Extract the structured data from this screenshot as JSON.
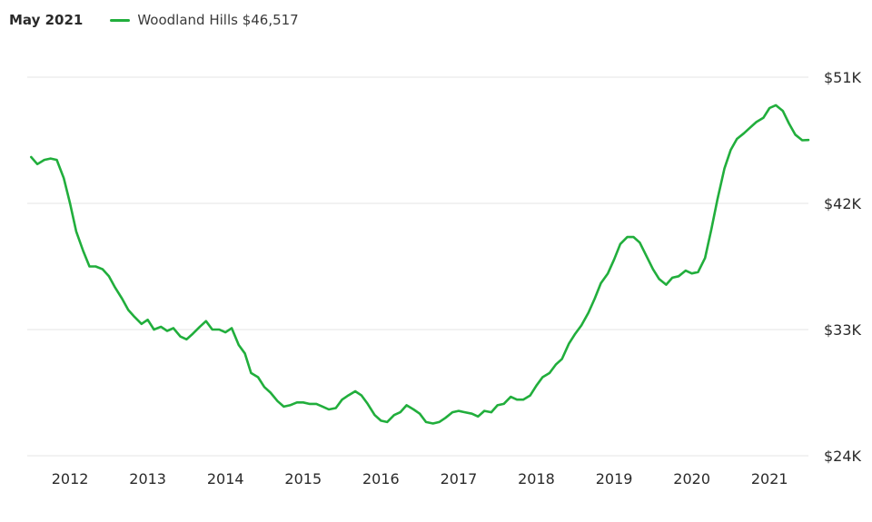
{
  "header": {
    "date_label": "May 2021",
    "series_label": "Woodland Hills $46,517"
  },
  "colors": {
    "line": "#21ae3c",
    "grid": "#e6e6e6",
    "text": "#2a2a2a"
  },
  "chart_data": {
    "type": "line",
    "title": "",
    "xlabel": "",
    "ylabel": "",
    "ylim": [
      24000,
      51000
    ],
    "y_ticks": [
      {
        "value": 24000,
        "label": "$24K"
      },
      {
        "value": 33000,
        "label": "$33K"
      },
      {
        "value": 42000,
        "label": "$42K"
      },
      {
        "value": 51000,
        "label": "$51K"
      }
    ],
    "x_ticks": [
      {
        "value": 2012,
        "label": "2012"
      },
      {
        "value": 2013,
        "label": "2013"
      },
      {
        "value": 2014,
        "label": "2014"
      },
      {
        "value": 2015,
        "label": "2015"
      },
      {
        "value": 2016,
        "label": "2016"
      },
      {
        "value": 2017,
        "label": "2017"
      },
      {
        "value": 2018,
        "label": "2018"
      },
      {
        "value": 2019,
        "label": "2019"
      },
      {
        "value": 2020,
        "label": "2020"
      },
      {
        "value": 2021,
        "label": "2021"
      }
    ],
    "xlim": [
      2011.45,
      2021.5
    ],
    "grid": true,
    "legend_position": "top-left",
    "series": [
      {
        "name": "Woodland Hills",
        "points": [
          [
            2011.5,
            45300
          ],
          [
            2011.58,
            44800
          ],
          [
            2011.67,
            45100
          ],
          [
            2011.75,
            45200
          ],
          [
            2011.83,
            45100
          ],
          [
            2011.92,
            43800
          ],
          [
            2012.0,
            42000
          ],
          [
            2012.08,
            40000
          ],
          [
            2012.17,
            38600
          ],
          [
            2012.25,
            37500
          ],
          [
            2012.33,
            37500
          ],
          [
            2012.42,
            37300
          ],
          [
            2012.5,
            36800
          ],
          [
            2012.58,
            36000
          ],
          [
            2012.67,
            35200
          ],
          [
            2012.75,
            34400
          ],
          [
            2012.83,
            33900
          ],
          [
            2012.92,
            33400
          ],
          [
            2013.0,
            33700
          ],
          [
            2013.08,
            33000
          ],
          [
            2013.17,
            33200
          ],
          [
            2013.25,
            32900
          ],
          [
            2013.33,
            33100
          ],
          [
            2013.42,
            32500
          ],
          [
            2013.5,
            32300
          ],
          [
            2013.58,
            32700
          ],
          [
            2013.67,
            33200
          ],
          [
            2013.75,
            33600
          ],
          [
            2013.83,
            33000
          ],
          [
            2013.92,
            33000
          ],
          [
            2014.0,
            32800
          ],
          [
            2014.08,
            33100
          ],
          [
            2014.17,
            31900
          ],
          [
            2014.25,
            31300
          ],
          [
            2014.33,
            29900
          ],
          [
            2014.42,
            29600
          ],
          [
            2014.5,
            28900
          ],
          [
            2014.58,
            28500
          ],
          [
            2014.67,
            27900
          ],
          [
            2014.75,
            27500
          ],
          [
            2014.83,
            27600
          ],
          [
            2014.92,
            27800
          ],
          [
            2015.0,
            27800
          ],
          [
            2015.08,
            27700
          ],
          [
            2015.17,
            27700
          ],
          [
            2015.25,
            27500
          ],
          [
            2015.33,
            27300
          ],
          [
            2015.42,
            27400
          ],
          [
            2015.5,
            28000
          ],
          [
            2015.58,
            28300
          ],
          [
            2015.67,
            28600
          ],
          [
            2015.75,
            28300
          ],
          [
            2015.83,
            27700
          ],
          [
            2015.92,
            26900
          ],
          [
            2016.0,
            26500
          ],
          [
            2016.08,
            26400
          ],
          [
            2016.17,
            26900
          ],
          [
            2016.25,
            27100
          ],
          [
            2016.33,
            27600
          ],
          [
            2016.42,
            27300
          ],
          [
            2016.5,
            27000
          ],
          [
            2016.58,
            26400
          ],
          [
            2016.67,
            26300
          ],
          [
            2016.75,
            26400
          ],
          [
            2016.83,
            26700
          ],
          [
            2016.92,
            27100
          ],
          [
            2017.0,
            27200
          ],
          [
            2017.08,
            27100
          ],
          [
            2017.17,
            27000
          ],
          [
            2017.25,
            26800
          ],
          [
            2017.33,
            27200
          ],
          [
            2017.42,
            27100
          ],
          [
            2017.5,
            27600
          ],
          [
            2017.58,
            27700
          ],
          [
            2017.67,
            28200
          ],
          [
            2017.75,
            28000
          ],
          [
            2017.83,
            28000
          ],
          [
            2017.92,
            28300
          ],
          [
            2018.0,
            29000
          ],
          [
            2018.08,
            29600
          ],
          [
            2018.17,
            29900
          ],
          [
            2018.25,
            30500
          ],
          [
            2018.33,
            30900
          ],
          [
            2018.42,
            32000
          ],
          [
            2018.5,
            32700
          ],
          [
            2018.58,
            33300
          ],
          [
            2018.67,
            34200
          ],
          [
            2018.75,
            35200
          ],
          [
            2018.83,
            36300
          ],
          [
            2018.92,
            37000
          ],
          [
            2019.0,
            38000
          ],
          [
            2019.08,
            39100
          ],
          [
            2019.17,
            39600
          ],
          [
            2019.25,
            39600
          ],
          [
            2019.33,
            39200
          ],
          [
            2019.42,
            38200
          ],
          [
            2019.5,
            37300
          ],
          [
            2019.58,
            36600
          ],
          [
            2019.67,
            36200
          ],
          [
            2019.75,
            36700
          ],
          [
            2019.83,
            36800
          ],
          [
            2019.92,
            37200
          ],
          [
            2020.0,
            37000
          ],
          [
            2020.08,
            37100
          ],
          [
            2020.17,
            38100
          ],
          [
            2020.25,
            40100
          ],
          [
            2020.33,
            42300
          ],
          [
            2020.42,
            44500
          ],
          [
            2020.5,
            45800
          ],
          [
            2020.58,
            46600
          ],
          [
            2020.67,
            47000
          ],
          [
            2020.75,
            47400
          ],
          [
            2020.83,
            47800
          ],
          [
            2020.92,
            48100
          ],
          [
            2021.0,
            48800
          ],
          [
            2021.08,
            49000
          ],
          [
            2021.17,
            48600
          ],
          [
            2021.25,
            47700
          ],
          [
            2021.33,
            46900
          ],
          [
            2021.42,
            46500
          ],
          [
            2021.5,
            46517
          ]
        ]
      }
    ]
  }
}
